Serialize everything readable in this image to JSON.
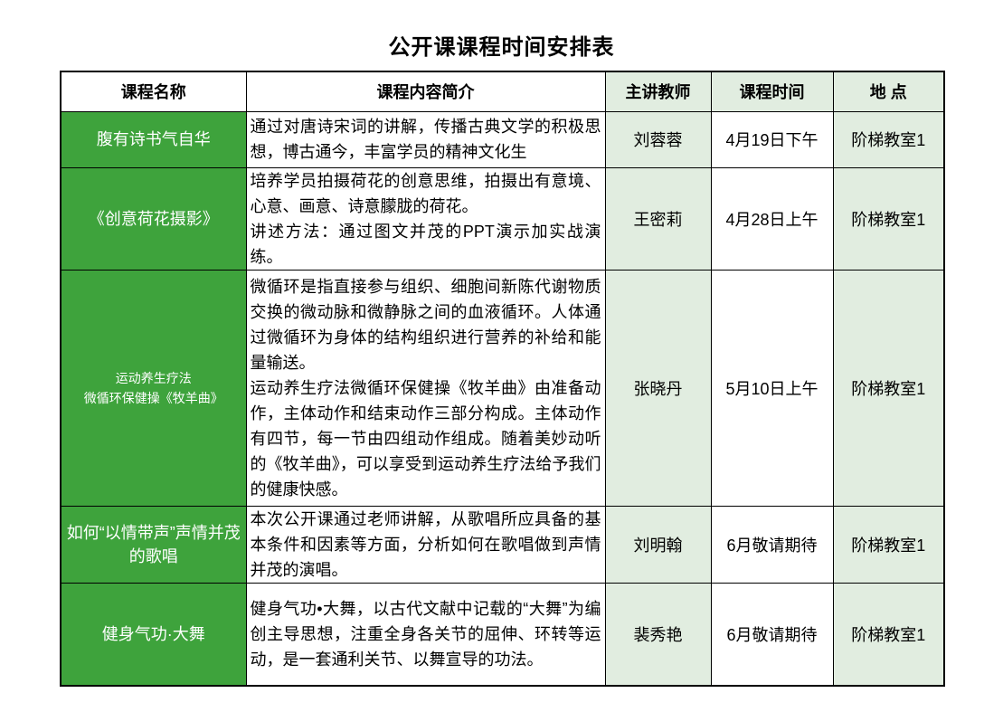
{
  "title": "公开课课程时间安排表",
  "colors": {
    "header_green": "#3EA33C",
    "pale_green": "#E1EDE0",
    "border": "#000000",
    "name_text": "#ffffff"
  },
  "table": {
    "headers": [
      {
        "key": "course-name",
        "label": "课程名称"
      },
      {
        "key": "content",
        "label": "课程内容简介"
      },
      {
        "key": "teacher",
        "label": "主讲教师"
      },
      {
        "key": "time",
        "label": "课程时间"
      },
      {
        "key": "location",
        "label": "地 点"
      }
    ],
    "rows": [
      {
        "name": "腹有诗书气自华",
        "content": "通过对唐诗宋词的讲解，传播古典文学的积极思想，博古通今，丰富学员的精神文化生",
        "teacher": "刘蓉蓉",
        "time": "4月19日下午",
        "location": "阶梯教室1"
      },
      {
        "name": "《创意荷花摄影》",
        "content": "培养学员拍摄荷花的创意思维，拍摄出有意境、心意、画意、诗意朦胧的荷花。\n讲述方法：通过图文并茂的PPT演示加实战演练。",
        "teacher": "王密莉",
        "time": "4月28日上午",
        "location": "阶梯教室1"
      },
      {
        "name": "运动养生疗法\n微循环保健操《牧羊曲》",
        "content": "微循环是指直接参与组织、细胞间新陈代谢物质交换的微动脉和微静脉之间的血液循环。人体通过微循环为身体的结构组织进行营养的补给和能量输送。\n运动养生疗法微循环保健操《牧羊曲》由准备动作，主体动作和结束动作三部分构成。主体动作有四节，每一节由四组动作组成。随着美妙动听的《牧羊曲》，可以享受到运动养生疗法给予我们的健康快感。",
        "teacher": "张晓丹",
        "time": "5月10日上午",
        "location": "阶梯教室1"
      },
      {
        "name": "如何“以情带声”声情并茂的歌唱",
        "content": "本次公开课通过老师讲解，从歌唱所应具备的基本条件和因素等方面，分析如何在歌唱做到声情并茂的演唱。",
        "teacher": "刘明翰",
        "time": "6月敬请期待",
        "location": "阶梯教室1"
      },
      {
        "name": "健身气功·大舞",
        "content": "健身气功•大舞，以古代文献中记载的“大舞”为编创主导思想，注重全身各关节的屈伸、环转等运动，是一套通利关节、以舞宣导的功法。",
        "teacher": "裴秀艳",
        "time": "6月敬请期待",
        "location": "阶梯教室1"
      }
    ]
  }
}
